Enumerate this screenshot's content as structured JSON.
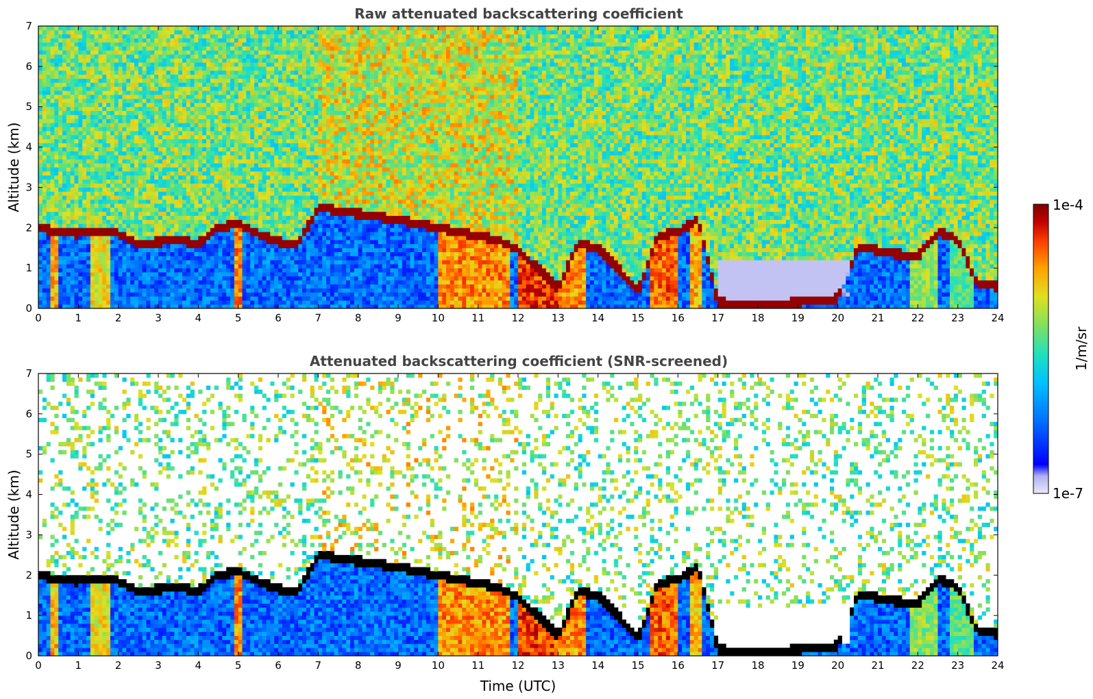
{
  "chart_data": [
    {
      "type": "heatmap",
      "title": "Raw attenuated backscattering coefficient",
      "xlabel": "",
      "ylabel": "Altitude (km)",
      "xlim": [
        0,
        24
      ],
      "ylim": [
        0,
        7
      ],
      "xticks": [
        "0",
        "1",
        "2",
        "3",
        "4",
        "5",
        "6",
        "7",
        "8",
        "9",
        "10",
        "11",
        "12",
        "13",
        "14",
        "15",
        "16",
        "17",
        "18",
        "19",
        "20",
        "21",
        "22",
        "23",
        "24"
      ],
      "yticks": [
        "0",
        "1",
        "2",
        "3",
        "4",
        "5",
        "6",
        "7"
      ],
      "grid": false,
      "layer_height_km": [
        [
          0,
          2.0
        ],
        [
          0.5,
          1.9
        ],
        [
          1,
          1.85
        ],
        [
          1.5,
          1.95
        ],
        [
          2,
          1.85
        ],
        [
          2.5,
          1.6
        ],
        [
          3,
          1.65
        ],
        [
          3.5,
          1.7
        ],
        [
          4,
          1.6
        ],
        [
          4.5,
          2.0
        ],
        [
          5,
          2.1
        ],
        [
          5.5,
          1.85
        ],
        [
          6,
          1.65
        ],
        [
          6.5,
          1.6
        ],
        [
          7,
          2.5
        ],
        [
          9,
          2.2
        ],
        [
          10,
          2.0
        ],
        [
          11,
          1.8
        ],
        [
          11.5,
          1.7
        ],
        [
          12,
          1.45
        ],
        [
          12.5,
          1.0
        ],
        [
          13,
          0.5
        ],
        [
          13.5,
          1.6
        ],
        [
          14,
          1.5
        ],
        [
          14.5,
          1.0
        ],
        [
          15,
          0.4
        ],
        [
          15.5,
          1.8
        ],
        [
          16,
          1.9
        ],
        [
          16.5,
          2.2
        ],
        [
          17,
          0.15
        ],
        [
          18,
          0.1
        ],
        [
          19,
          0.15
        ],
        [
          20,
          0.25
        ],
        [
          20.5,
          1.5
        ],
        [
          21,
          1.45
        ],
        [
          21.5,
          1.35
        ],
        [
          22,
          1.3
        ],
        [
          22.5,
          1.9
        ],
        [
          23,
          1.7
        ],
        [
          23.5,
          0.6
        ],
        [
          24,
          0.55
        ]
      ]
    },
    {
      "type": "heatmap",
      "title": "Attenuated backscattering coefficient (SNR-screened)",
      "xlabel": "Time (UTC)",
      "ylabel": "Altitude (km)",
      "xlim": [
        0,
        24
      ],
      "ylim": [
        0,
        7
      ],
      "xticks": [
        "0",
        "1",
        "2",
        "3",
        "4",
        "5",
        "6",
        "7",
        "8",
        "9",
        "10",
        "11",
        "12",
        "13",
        "14",
        "15",
        "16",
        "17",
        "18",
        "19",
        "20",
        "21",
        "22",
        "23",
        "24"
      ],
      "yticks": [
        "0",
        "1",
        "2",
        "3",
        "4",
        "5",
        "6",
        "7"
      ],
      "grid": false
    }
  ],
  "colorbar": {
    "label": "1/m/sr",
    "max_label": "1e-4",
    "min_label": "1e-7",
    "scale": "log",
    "range": [
      1e-07,
      0.0001
    ],
    "colormap": [
      "#e8e8f8",
      "#0000ff",
      "#0060ff",
      "#00b0ff",
      "#20e0c0",
      "#80e060",
      "#e0e020",
      "#ffa000",
      "#ff4000",
      "#c00000",
      "#800000"
    ]
  }
}
